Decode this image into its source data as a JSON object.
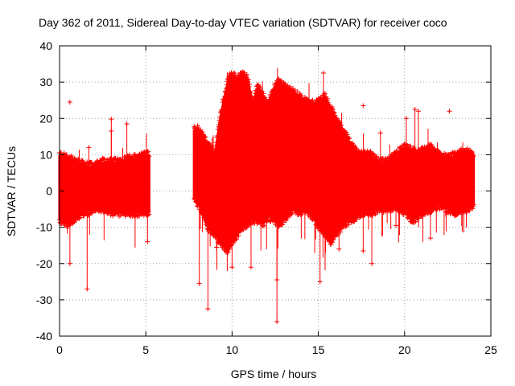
{
  "chart_data": {
    "type": "scatter",
    "title": "Day 362 of 2011, Sidereal Day-to-day VTEC variation (SDTVAR) for receiver coco",
    "xlabel": "GPS time / hours",
    "ylabel": "SDTVAR / TECUs",
    "xlim": [
      0,
      25
    ],
    "ylim": [
      -40,
      40
    ],
    "xticks": [
      "0",
      "5",
      "10",
      "15",
      "20",
      "25"
    ],
    "yticks": [
      "-40",
      "-30",
      "-20",
      "-10",
      "0",
      "10",
      "20",
      "30",
      "40"
    ],
    "grid": true,
    "marker": "+",
    "series_color": "#ff0000",
    "data_gap_hours": [
      5.2,
      7.8
    ],
    "envelope": {
      "x": [
        0.0,
        0.5,
        1.0,
        1.5,
        2.0,
        2.5,
        3.0,
        3.5,
        4.0,
        4.5,
        5.0,
        5.2,
        7.8,
        8.2,
        8.6,
        9.0,
        9.3,
        9.6,
        9.8,
        10.0,
        10.3,
        10.6,
        10.9,
        11.2,
        11.5,
        11.8,
        12.1,
        12.4,
        12.7,
        13.0,
        13.3,
        13.6,
        13.9,
        14.2,
        14.5,
        14.8,
        15.1,
        15.4,
        15.7,
        16.0,
        16.5,
        17.0,
        17.5,
        18.0,
        18.5,
        19.0,
        19.5,
        20.0,
        20.5,
        21.0,
        21.5,
        22.0,
        22.5,
        23.0,
        23.5,
        24.0
      ],
      "upper": [
        10,
        9,
        8,
        7,
        7,
        8,
        8,
        8,
        9,
        9,
        10,
        10,
        17,
        16,
        13,
        10,
        20,
        27,
        31,
        32,
        31,
        32,
        31,
        24,
        29,
        26,
        24,
        28,
        30,
        29,
        28,
        27,
        26,
        25,
        24,
        24,
        25,
        26,
        23,
        20,
        16,
        12,
        10,
        10,
        8,
        8,
        10,
        12,
        11,
        11,
        12,
        10,
        9,
        10,
        11,
        10
      ],
      "lower": [
        -8,
        -9,
        -7,
        -6,
        -5,
        -5,
        -6,
        -6,
        -6,
        -6,
        -6,
        -6,
        -2,
        -5,
        -10,
        -12,
        -14,
        -16,
        -16,
        -14,
        -12,
        -10,
        -9,
        -8,
        -8,
        -9,
        -7,
        -8,
        -9,
        -8,
        -6,
        -5,
        -6,
        -5,
        -6,
        -8,
        -10,
        -12,
        -14,
        -12,
        -9,
        -8,
        -6,
        -6,
        -5,
        -5,
        -4,
        -6,
        -8,
        -6,
        -5,
        -4,
        -5,
        -6,
        -5,
        -4
      ]
    },
    "outliers": [
      {
        "x": 0.6,
        "y": 24.5
      },
      {
        "x": 0.6,
        "y": -20
      },
      {
        "x": 1.6,
        "y": -27
      },
      {
        "x": 1.7,
        "y": 12
      },
      {
        "x": 3.0,
        "y": 19.8
      },
      {
        "x": 3.0,
        "y": 16.5
      },
      {
        "x": 3.9,
        "y": 18.5
      },
      {
        "x": 5.1,
        "y": -14
      },
      {
        "x": 8.1,
        "y": -25.5
      },
      {
        "x": 8.6,
        "y": -32.5
      },
      {
        "x": 9.1,
        "y": -15.5
      },
      {
        "x": 11.1,
        "y": -21
      },
      {
        "x": 12.6,
        "y": -24.5
      },
      {
        "x": 12.6,
        "y": -36
      },
      {
        "x": 15.1,
        "y": -25
      },
      {
        "x": 15.3,
        "y": 32.5
      },
      {
        "x": 17.6,
        "y": 23.5
      },
      {
        "x": 17.6,
        "y": -16.5
      },
      {
        "x": 18.1,
        "y": -20
      },
      {
        "x": 19.5,
        "y": -9.5
      },
      {
        "x": 20.1,
        "y": 20
      },
      {
        "x": 20.6,
        "y": 22.5
      },
      {
        "x": 20.8,
        "y": 22
      },
      {
        "x": 21.5,
        "y": -13
      },
      {
        "x": 22.6,
        "y": 22
      },
      {
        "x": 16.2,
        "y": -16
      },
      {
        "x": 10.0,
        "y": -21
      },
      {
        "x": 18.6,
        "y": 16
      },
      {
        "x": 8.0,
        "y": 18
      },
      {
        "x": 9.4,
        "y": -11
      }
    ]
  }
}
